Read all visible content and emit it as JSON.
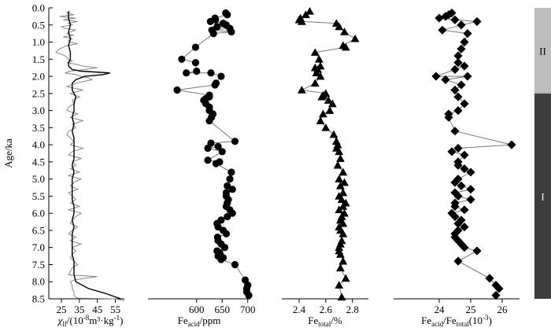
{
  "chart_data": [
    {
      "type": "line",
      "xlabel": {
        "sym": "χ",
        "sub": "lf",
        "rest": "/(10",
        "sup": "-8",
        "rest2": "m³·kg",
        "sup2": "-1",
        "end": ")"
      },
      "ylabel": "Age/ka",
      "xticks": [
        "25",
        "35",
        "45",
        "55"
      ],
      "xlim": [
        18,
        60
      ],
      "ylim": [
        0,
        8.5
      ],
      "series": [
        {
          "role": "raw",
          "color": "#888888",
          "x": [
            30,
            28,
            32,
            24,
            33,
            26,
            34,
            29,
            31,
            25,
            27,
            33,
            30,
            28,
            32,
            26,
            31,
            29,
            30,
            34,
            28,
            24,
            22,
            27,
            29,
            31,
            28,
            33,
            37,
            45,
            38,
            30,
            27,
            33,
            36,
            40,
            42,
            33,
            28,
            37,
            30,
            35,
            31,
            32,
            29,
            28,
            34,
            30,
            37,
            31,
            33,
            29,
            28,
            30,
            32,
            30,
            37,
            31,
            29,
            36,
            31,
            33,
            30,
            35,
            29,
            36,
            32,
            30,
            34,
            29,
            31,
            33,
            30,
            35,
            29,
            36,
            33,
            31,
            30,
            34,
            31,
            29,
            33,
            30,
            36,
            31,
            33,
            31,
            30,
            32,
            34,
            31,
            30,
            29,
            45,
            38,
            32,
            30,
            31,
            31,
            32,
            32,
            33,
            34,
            55,
            60
          ],
          "y": [
            0.1,
            0.15,
            0.2,
            0.25,
            0.3,
            0.35,
            0.4,
            0.45,
            0.5,
            0.55,
            0.6,
            0.65,
            0.7,
            0.75,
            0.8,
            0.85,
            0.9,
            0.95,
            1.0,
            1.05,
            1.1,
            1.2,
            1.3,
            1.4,
            1.5,
            1.55,
            1.6,
            1.65,
            1.7,
            1.75,
            1.8,
            1.85,
            1.9,
            1.95,
            2.0,
            2.05,
            2.1,
            2.2,
            2.3,
            2.4,
            2.5,
            2.6,
            2.7,
            2.8,
            2.9,
            3.0,
            3.1,
            3.2,
            3.3,
            3.4,
            3.5,
            3.6,
            3.7,
            3.8,
            3.9,
            4.0,
            4.1,
            4.2,
            4.3,
            4.4,
            4.5,
            4.6,
            4.7,
            4.8,
            4.9,
            5.0,
            5.1,
            5.2,
            5.3,
            5.4,
            5.5,
            5.6,
            5.7,
            5.8,
            5.9,
            6.0,
            6.1,
            6.2,
            6.3,
            6.4,
            6.5,
            6.6,
            6.7,
            6.8,
            6.9,
            7.0,
            7.1,
            7.2,
            7.3,
            7.4,
            7.5,
            7.6,
            7.7,
            7.8,
            7.85,
            7.9,
            7.95,
            8.0,
            8.1,
            8.2,
            8.3,
            8.4,
            8.45,
            8.48,
            8.5,
            8.55
          ]
        },
        {
          "role": "smoothed",
          "color": "#000000",
          "x": [
            29,
            29,
            30,
            29,
            30,
            29,
            30,
            30,
            29,
            29,
            30,
            31,
            36,
            52,
            48,
            38,
            33,
            31,
            31,
            33,
            32,
            32,
            31,
            32,
            31,
            32,
            32,
            32,
            32,
            31,
            32,
            31,
            31,
            31,
            31,
            32,
            32,
            31,
            32,
            31,
            31,
            31,
            31,
            32,
            32,
            32,
            33,
            40,
            50,
            58
          ],
          "y": [
            0.1,
            0.3,
            0.5,
            0.7,
            0.9,
            1.1,
            1.3,
            1.5,
            1.6,
            1.7,
            1.75,
            1.8,
            1.85,
            1.9,
            1.95,
            2.0,
            2.1,
            2.2,
            2.4,
            2.6,
            2.8,
            3.0,
            3.2,
            3.4,
            3.6,
            3.8,
            4.0,
            4.2,
            4.4,
            4.6,
            4.8,
            5.0,
            5.2,
            5.4,
            5.6,
            5.8,
            6.0,
            6.2,
            6.4,
            6.6,
            6.8,
            7.0,
            7.2,
            7.4,
            7.6,
            7.8,
            8.0,
            8.2,
            8.35,
            8.5
          ]
        }
      ]
    },
    {
      "type": "scatter",
      "marker": "circle",
      "xlabel": {
        "main": "Fe",
        "sub": "acid",
        "rest": "/ppm"
      },
      "xticks": [
        "600",
        "650",
        "700"
      ],
      "xlim": [
        505,
        705
      ],
      "ylim": [
        0,
        8.5
      ],
      "x": [
        657,
        660,
        636,
        637,
        627,
        652,
        658,
        640,
        665,
        630,
        668,
        633,
        598,
        571,
        598,
        600,
        580,
        628,
        648,
        638,
        636,
        562,
        625,
        625,
        618,
        614,
        618,
        625,
        625,
        632,
        629,
        625,
        675,
        628,
        642,
        622,
        650,
        622,
        645,
        638,
        668,
        665,
        660,
        670,
        658,
        658,
        662,
        660,
        658,
        665,
        670,
        660,
        648,
        640,
        642,
        652,
        658,
        641,
        642,
        648,
        655,
        640,
        645,
        646,
        642,
        652,
        648,
        675,
        695,
        700,
        698,
        698,
        702
      ],
      "y": [
        0.15,
        0.2,
        0.3,
        0.35,
        0.4,
        0.45,
        0.5,
        0.55,
        0.6,
        0.65,
        0.7,
        0.75,
        1.15,
        1.5,
        1.6,
        1.85,
        1.9,
        1.9,
        2.0,
        2.2,
        2.25,
        2.4,
        2.55,
        2.6,
        2.65,
        2.7,
        2.8,
        2.9,
        3.0,
        3.1,
        3.2,
        3.3,
        3.9,
        3.95,
        4.05,
        4.1,
        4.2,
        4.45,
        4.5,
        4.55,
        4.8,
        5.0,
        5.2,
        5.3,
        5.4,
        5.5,
        5.6,
        5.7,
        5.8,
        5.9,
        6.0,
        6.1,
        6.2,
        6.3,
        6.4,
        6.5,
        6.6,
        6.7,
        6.8,
        6.9,
        7.0,
        7.1,
        7.15,
        7.2,
        7.25,
        7.3,
        7.35,
        7.5,
        7.95,
        8.1,
        8.2,
        8.3,
        8.4
      ]
    },
    {
      "type": "scatter",
      "marker": "triangle",
      "xlabel": {
        "main": "Fe",
        "sub": "total",
        "rest": "/%"
      },
      "xticks": [
        "2.4",
        "2.6",
        "2.8"
      ],
      "xlim": [
        2.27,
        2.92
      ],
      "ylim": [
        0,
        8.5
      ],
      "x": [
        2.48,
        2.45,
        2.41,
        2.4,
        2.42,
        2.68,
        2.7,
        2.74,
        2.82,
        2.73,
        2.75,
        2.52,
        2.55,
        2.56,
        2.52,
        2.54,
        2.53,
        2.56,
        2.52,
        2.42,
        2.6,
        2.58,
        2.57,
        2.62,
        2.65,
        2.63,
        2.58,
        2.56,
        2.6,
        2.66,
        2.68,
        2.69,
        2.68,
        2.7,
        2.71,
        2.69,
        2.73,
        2.7,
        2.74,
        2.71,
        2.73,
        2.7,
        2.72,
        2.75,
        2.73,
        2.7,
        2.74,
        2.72,
        2.71,
        2.73,
        2.7,
        2.71,
        2.73,
        2.72,
        2.71,
        2.7,
        2.7,
        2.71,
        2.73,
        2.71,
        2.75,
        2.7,
        2.72
      ],
      "y": [
        0.1,
        0.2,
        0.3,
        0.35,
        0.4,
        0.45,
        0.55,
        0.7,
        0.9,
        1.1,
        1.15,
        1.3,
        1.5,
        1.7,
        1.75,
        1.8,
        1.9,
        2.0,
        2.2,
        2.4,
        2.5,
        2.55,
        2.6,
        2.7,
        2.8,
        3.0,
        3.1,
        3.3,
        3.5,
        3.7,
        3.9,
        4.0,
        4.1,
        4.2,
        4.4,
        4.6,
        4.8,
        5.0,
        5.1,
        5.2,
        5.4,
        5.5,
        5.6,
        5.7,
        5.8,
        5.9,
        6.0,
        6.1,
        6.2,
        6.3,
        6.4,
        6.5,
        6.6,
        6.8,
        6.9,
        7.0,
        7.1,
        7.2,
        7.4,
        7.6,
        7.9,
        8.1,
        8.45
      ]
    },
    {
      "type": "scatter",
      "marker": "diamond",
      "xlabel": {
        "main": "Fe",
        "sub": "acid",
        "mid": "/Fe",
        "sub2": "total",
        "rest": "(10",
        "sup": "-3",
        "end": ")"
      },
      "xticks": [
        "24",
        "25",
        "26"
      ],
      "xlim": [
        22.55,
        26.55
      ],
      "ylim": [
        0,
        8.5
      ],
      "x": [
        24.4,
        24.3,
        24.2,
        24.0,
        24.5,
        25.2,
        24.7,
        24.1,
        24.9,
        24.8,
        24.7,
        24.6,
        24.6,
        24.8,
        24.5,
        23.9,
        24.9,
        24.2,
        24.7,
        24.5,
        24.6,
        24.8,
        24.6,
        24.3,
        24.3,
        24.5,
        26.3,
        24.6,
        24.4,
        24.8,
        24.6,
        24.6,
        24.8,
        25.0,
        24.6,
        24.5,
        24.7,
        25.0,
        24.5,
        24.6,
        25.0,
        24.5,
        24.5,
        24.8,
        24.4,
        24.5,
        24.7,
        24.6,
        24.8,
        24.6,
        24.5,
        24.5,
        24.6,
        24.7,
        24.8,
        25.2,
        24.6,
        25.6,
        25.8,
        25.9,
        25.8
      ],
      "y": [
        0.15,
        0.2,
        0.25,
        0.3,
        0.35,
        0.4,
        0.5,
        0.65,
        0.75,
        1.0,
        1.2,
        1.4,
        1.6,
        1.7,
        1.8,
        2.0,
        2.0,
        2.1,
        2.25,
        2.4,
        2.6,
        2.8,
        3.0,
        3.1,
        3.2,
        3.6,
        4.0,
        4.1,
        4.2,
        4.3,
        4.5,
        4.6,
        4.7,
        4.8,
        5.0,
        5.1,
        5.2,
        5.3,
        5.4,
        5.5,
        5.6,
        5.7,
        5.8,
        5.9,
        6.0,
        6.1,
        6.2,
        6.3,
        6.4,
        6.5,
        6.6,
        6.7,
        6.8,
        6.9,
        7.0,
        7.1,
        7.4,
        7.9,
        8.1,
        8.2,
        8.4
      ]
    }
  ],
  "y_axis": {
    "ticks": [
      "0.0",
      "0.5",
      "1.0",
      "1.5",
      "2.0",
      "2.5",
      "3.0",
      "3.5",
      "4.0",
      "4.5",
      "5.0",
      "5.5",
      "6.0",
      "6.5",
      "7.0",
      "7.5",
      "8.0",
      "8.5"
    ]
  },
  "zones": [
    {
      "label": "II",
      "from": 0.0,
      "to": 2.5,
      "color": "#bdbdbd"
    },
    {
      "label": "I",
      "from": 2.5,
      "to": 8.5,
      "color": "#3c3c3c"
    }
  ]
}
